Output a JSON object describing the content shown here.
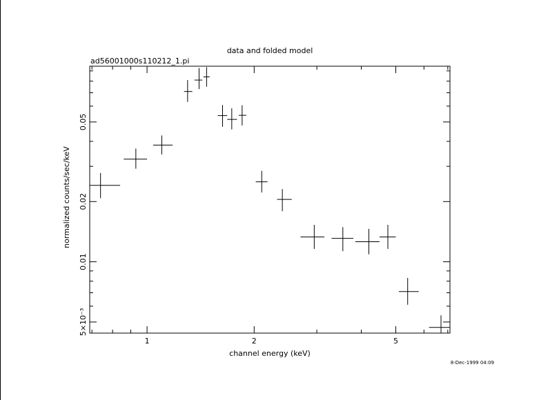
{
  "chart_data": {
    "type": "scatter",
    "title": "data and folded model",
    "subtitle": "ad56001000s110212_1.pi",
    "xlabel": "channel energy (keV)",
    "ylabel": "normalized counts/sec/keV",
    "xscale": "log",
    "yscale": "log",
    "xlim": [
      0.69,
      7.1
    ],
    "ylim": [
      0.0044,
      0.095
    ],
    "x_ticks": [
      {
        "value": 1,
        "label": "1"
      },
      {
        "value": 2,
        "label": "2"
      },
      {
        "value": 5,
        "label": "5"
      }
    ],
    "y_ticks": [
      {
        "value": 0.005,
        "label": "5×10⁻³"
      },
      {
        "value": 0.01,
        "label": "0.01"
      },
      {
        "value": 0.02,
        "label": "0.02"
      },
      {
        "value": 0.05,
        "label": "0.05"
      }
    ],
    "grid": false,
    "footer": "8-Dec-1999 04:09",
    "series": [
      {
        "points": [
          {
            "x": 0.74,
            "xlo": 0.69,
            "xhi": 0.84,
            "y": 0.0241,
            "ylo": 0.0208,
            "yhi": 0.0278
          },
          {
            "x": 0.93,
            "xlo": 0.86,
            "xhi": 1.0,
            "y": 0.0326,
            "ylo": 0.0292,
            "yhi": 0.0368
          },
          {
            "x": 1.1,
            "xlo": 1.04,
            "xhi": 1.18,
            "y": 0.0383,
            "ylo": 0.0344,
            "yhi": 0.0428
          },
          {
            "x": 1.3,
            "xlo": 1.27,
            "xhi": 1.34,
            "y": 0.071,
            "ylo": 0.063,
            "yhi": 0.081
          },
          {
            "x": 1.4,
            "xlo": 1.36,
            "xhi": 1.43,
            "y": 0.081,
            "ylo": 0.073,
            "yhi": 0.093
          },
          {
            "x": 1.47,
            "xlo": 1.44,
            "xhi": 1.5,
            "y": 0.084,
            "ylo": 0.075,
            "yhi": 0.094
          },
          {
            "x": 1.63,
            "xlo": 1.58,
            "xhi": 1.68,
            "y": 0.0538,
            "ylo": 0.0473,
            "yhi": 0.0608
          },
          {
            "x": 1.73,
            "xlo": 1.68,
            "xhi": 1.79,
            "y": 0.0515,
            "ylo": 0.0459,
            "yhi": 0.0585
          },
          {
            "x": 1.85,
            "xlo": 1.81,
            "xhi": 1.9,
            "y": 0.054,
            "ylo": 0.048,
            "yhi": 0.0606
          },
          {
            "x": 2.1,
            "xlo": 2.02,
            "xhi": 2.18,
            "y": 0.0251,
            "ylo": 0.0222,
            "yhi": 0.0285
          },
          {
            "x": 2.4,
            "xlo": 2.32,
            "xhi": 2.55,
            "y": 0.0205,
            "ylo": 0.0179,
            "yhi": 0.0231
          },
          {
            "x": 2.95,
            "xlo": 2.7,
            "xhi": 3.15,
            "y": 0.0133,
            "ylo": 0.0116,
            "yhi": 0.0153
          },
          {
            "x": 3.55,
            "xlo": 3.3,
            "xhi": 3.8,
            "y": 0.0131,
            "ylo": 0.0113,
            "yhi": 0.0149
          },
          {
            "x": 4.2,
            "xlo": 3.85,
            "xhi": 4.5,
            "y": 0.0126,
            "ylo": 0.0109,
            "yhi": 0.0146
          },
          {
            "x": 4.75,
            "xlo": 4.5,
            "xhi": 5.0,
            "y": 0.0133,
            "ylo": 0.0116,
            "yhi": 0.0153
          },
          {
            "x": 5.4,
            "xlo": 5.1,
            "xhi": 5.8,
            "y": 0.0071,
            "ylo": 0.0061,
            "yhi": 0.0083
          },
          {
            "x": 6.7,
            "xlo": 6.2,
            "xhi": 7.1,
            "y": 0.0047,
            "ylo": 0.0042,
            "yhi": 0.0054
          }
        ]
      }
    ]
  }
}
